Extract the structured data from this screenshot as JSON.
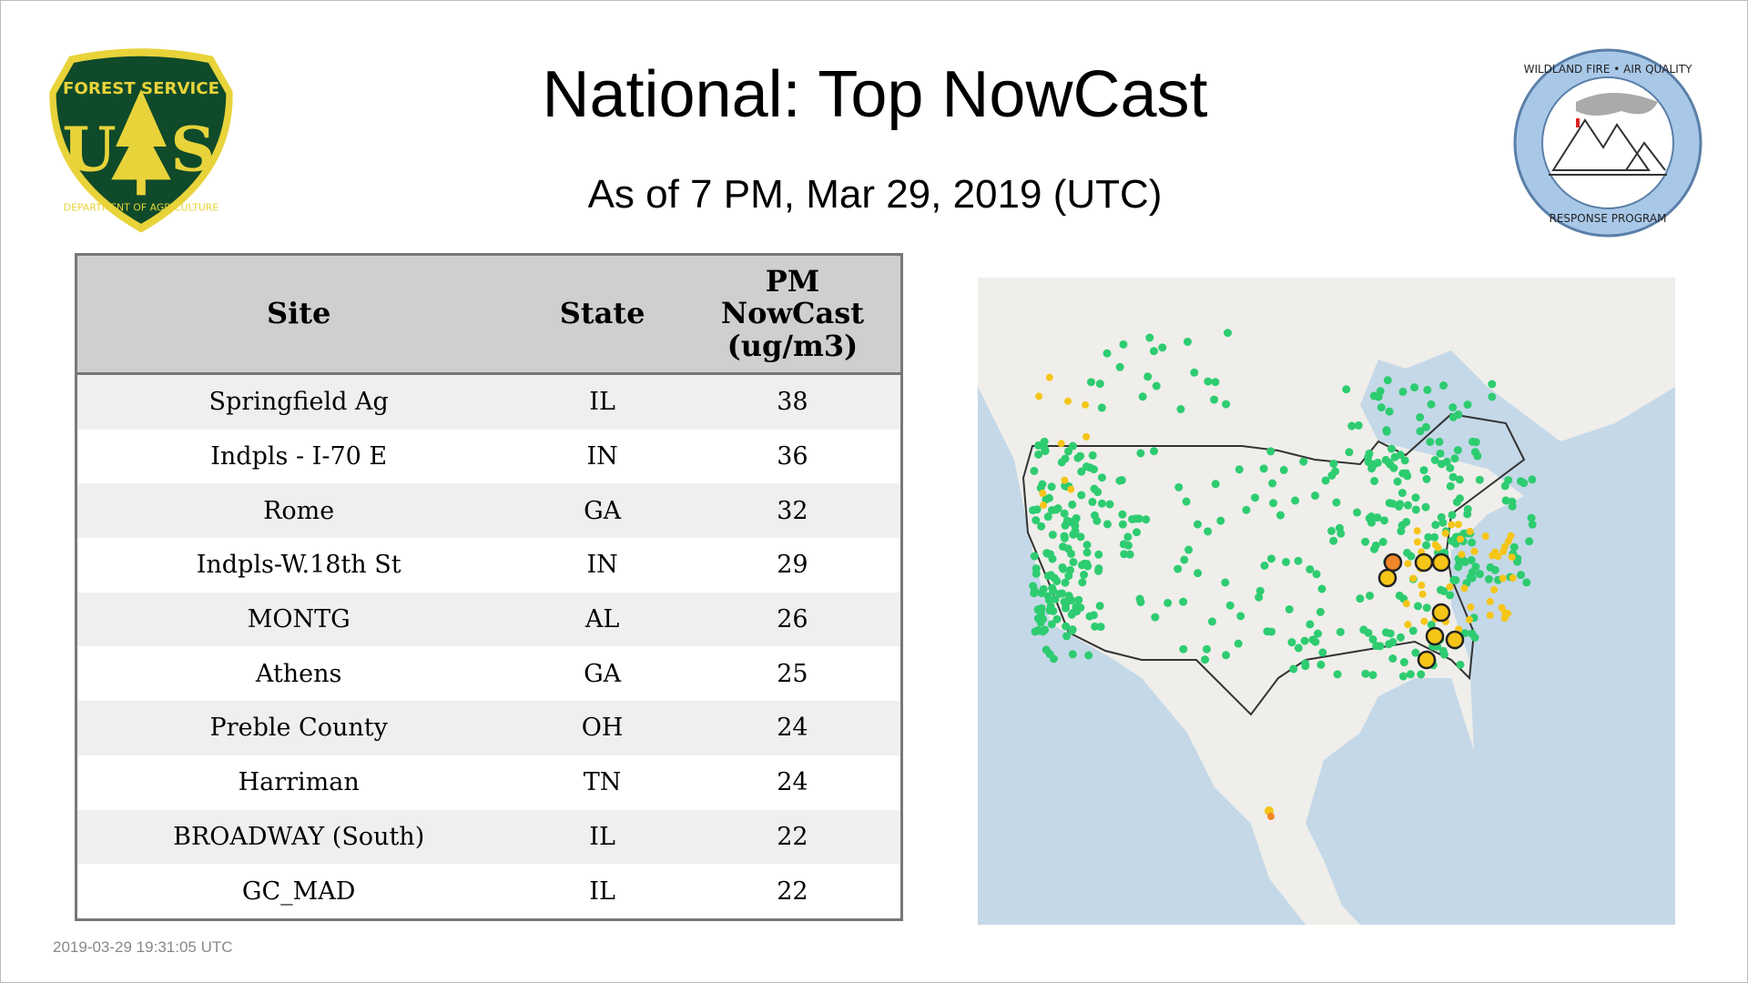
{
  "header": {
    "title": "National: Top NowCast",
    "subtitle": "As of  7 PM, Mar 29, 2019 (UTC)"
  },
  "logos": {
    "left": "Forest Service U S Department of Agriculture",
    "right": "Wildland Fire Air Quality Response Program"
  },
  "table": {
    "columns": [
      "Site",
      "State",
      "PM NowCast (ug/m3)"
    ],
    "rows": [
      {
        "site": "Springfield Ag",
        "state": "IL",
        "value": "38"
      },
      {
        "site": "Indpls - I-70 E",
        "state": "IN",
        "value": "36"
      },
      {
        "site": "Rome",
        "state": "GA",
        "value": "32"
      },
      {
        "site": "Indpls-W.18th St",
        "state": "IN",
        "value": "29"
      },
      {
        "site": "MONTG",
        "state": "AL",
        "value": "26"
      },
      {
        "site": "Athens",
        "state": "GA",
        "value": "25"
      },
      {
        "site": "Preble County",
        "state": "OH",
        "value": "24"
      },
      {
        "site": "Harriman",
        "state": "TN",
        "value": "24"
      },
      {
        "site": "BROADWAY (South)",
        "state": "IL",
        "value": "22"
      },
      {
        "site": "GC_MAD",
        "state": "IL",
        "value": "22"
      }
    ]
  },
  "map": {
    "colors": {
      "good": "#2ecc71",
      "moderate": "#f5c518",
      "usg": "#f0862a",
      "water": "#c5d8e8",
      "land": "#efeeea"
    }
  },
  "footer": {
    "timestamp": "2019-03-29 19:31:05 UTC"
  }
}
